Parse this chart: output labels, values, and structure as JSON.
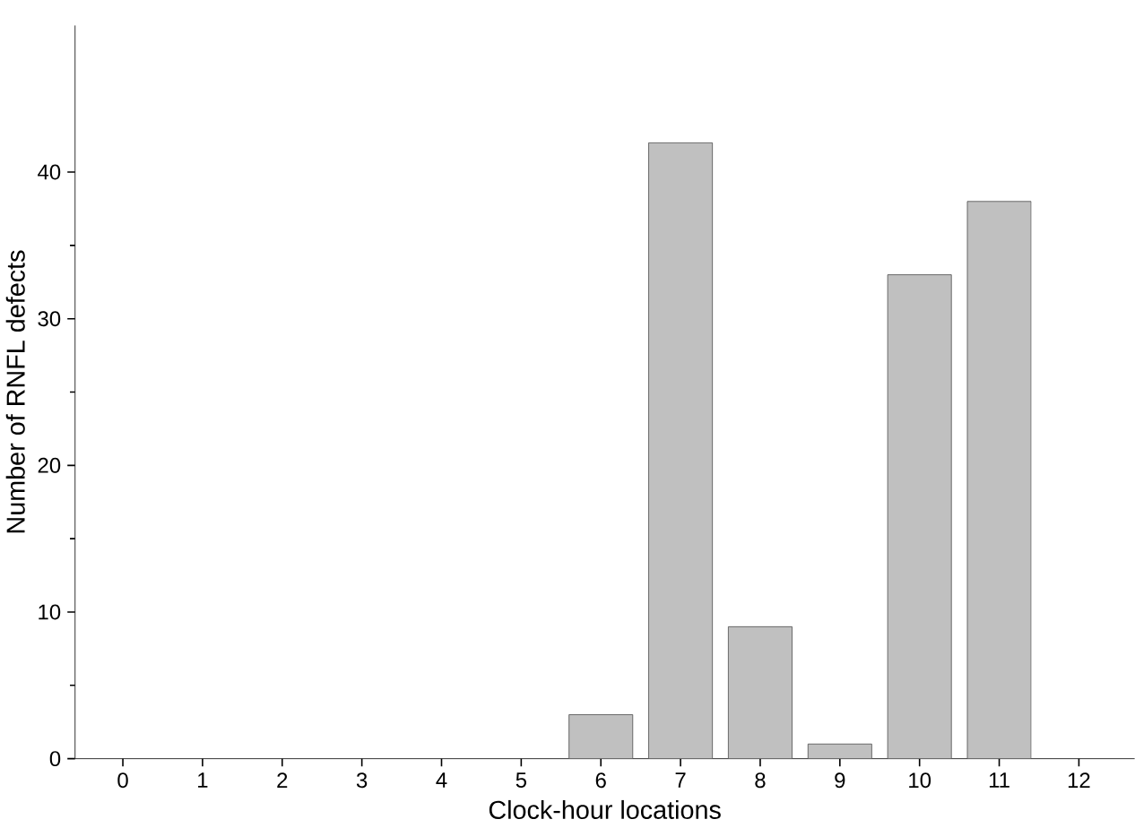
{
  "chart_data": {
    "type": "bar",
    "xlabel": "Clock-hour locations",
    "ylabel": "Number of RNFL defects",
    "x": [
      6,
      7,
      8,
      9,
      10,
      11
    ],
    "values": [
      3,
      42,
      9,
      1,
      33,
      38
    ],
    "color": "#c0c0c0",
    "xlim": [
      -0.6,
      12.7
    ],
    "ylim": [
      0,
      50
    ],
    "xticks": [
      0,
      1,
      2,
      3,
      4,
      5,
      6,
      7,
      8,
      9,
      10,
      11,
      12
    ],
    "yticks": [
      0,
      10,
      20,
      30,
      40
    ]
  }
}
